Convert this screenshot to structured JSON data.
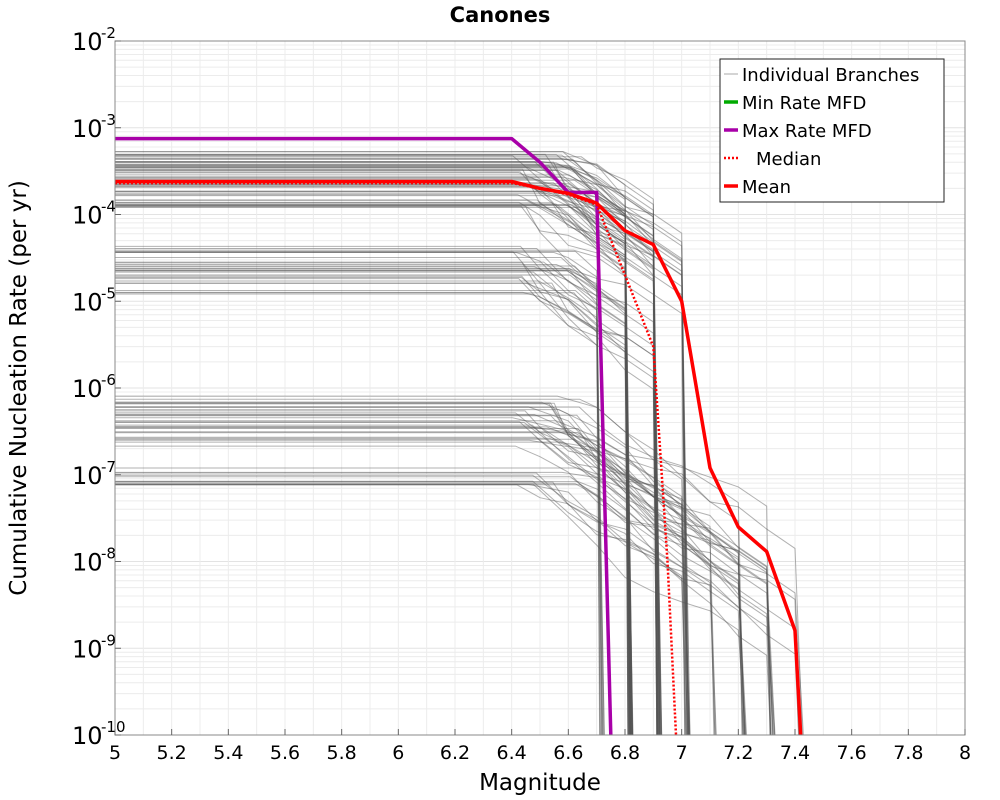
{
  "chart_data": {
    "type": "line",
    "title": "Canones",
    "xlabel": "Magnitude",
    "ylabel": "Cumulative Nucleation Rate (per yr)",
    "xlim": [
      5,
      8
    ],
    "ylim": [
      1e-10,
      0.01
    ],
    "y_scale": "log",
    "grid": true,
    "legend_position": "top-right",
    "x_ticks": [
      "5",
      "5.2",
      "5.4",
      "5.6",
      "5.8",
      "6",
      "6.2",
      "6.4",
      "6.6",
      "6.8",
      "7",
      "7.2",
      "7.4",
      "7.6",
      "7.8",
      "8"
    ],
    "y_ticks": [
      {
        "base": "10",
        "exp": "-2",
        "value": 0.01
      },
      {
        "base": "10",
        "exp": "-3",
        "value": 0.001
      },
      {
        "base": "10",
        "exp": "-4",
        "value": 0.0001
      },
      {
        "base": "10",
        "exp": "-5",
        "value": 1e-05
      },
      {
        "base": "10",
        "exp": "-6",
        "value": 1e-06
      },
      {
        "base": "10",
        "exp": "-7",
        "value": 1e-07
      },
      {
        "base": "10",
        "exp": "-8",
        "value": 1e-08
      },
      {
        "base": "10",
        "exp": "-9",
        "value": 1e-09
      },
      {
        "base": "10",
        "exp": "-10",
        "value": 1e-10
      }
    ],
    "series": [
      {
        "name": "Individual Branches",
        "color": "#555555",
        "style": "solid",
        "branch_groups": [
          {
            "count": 60,
            "rate_range": [
              0.00012,
              0.00055
            ],
            "cutoff_mags": [
              6.8,
              6.9,
              7.0
            ]
          },
          {
            "count": 30,
            "rate_range": [
              1.2e-05,
              4.5e-05
            ],
            "cutoff_mags": [
              6.7,
              6.8,
              6.9
            ]
          },
          {
            "count": 45,
            "rate_range": [
              7e-08,
              9e-07
            ],
            "cutoff_mags": [
              7.0,
              7.1,
              7.2,
              7.3,
              7.4
            ]
          }
        ]
      },
      {
        "name": "Min Rate MFD",
        "color": "#00aa00",
        "style": "solid",
        "x": [],
        "y": []
      },
      {
        "name": "Max Rate MFD",
        "color": "#a800a8",
        "style": "solid",
        "x": [
          5.0,
          6.4,
          6.5,
          6.6,
          6.7,
          6.75
        ],
        "y": [
          0.00075,
          0.00075,
          0.0004,
          0.00018,
          0.00018,
          1e-10
        ]
      },
      {
        "name": "Median",
        "color": "#ff0000",
        "style": "dotted",
        "x": [
          5.0,
          6.4,
          6.5,
          6.6,
          6.7,
          6.8,
          6.9,
          6.95,
          6.98
        ],
        "y": [
          0.00023,
          0.00023,
          0.0002,
          0.00017,
          0.00013,
          2e-05,
          3e-06,
          1e-08,
          1e-10
        ]
      },
      {
        "name": "Mean",
        "color": "#ff0000",
        "style": "solid",
        "x": [
          5.0,
          6.4,
          6.5,
          6.6,
          6.7,
          6.8,
          6.9,
          7.0,
          7.1,
          7.2,
          7.3,
          7.4,
          7.42
        ],
        "y": [
          0.00024,
          0.00024,
          0.0002,
          0.000175,
          0.000135,
          6.5e-05,
          4.5e-05,
          1e-05,
          1.2e-07,
          2.5e-08,
          1.3e-08,
          1.6e-09,
          1e-10
        ]
      }
    ]
  }
}
